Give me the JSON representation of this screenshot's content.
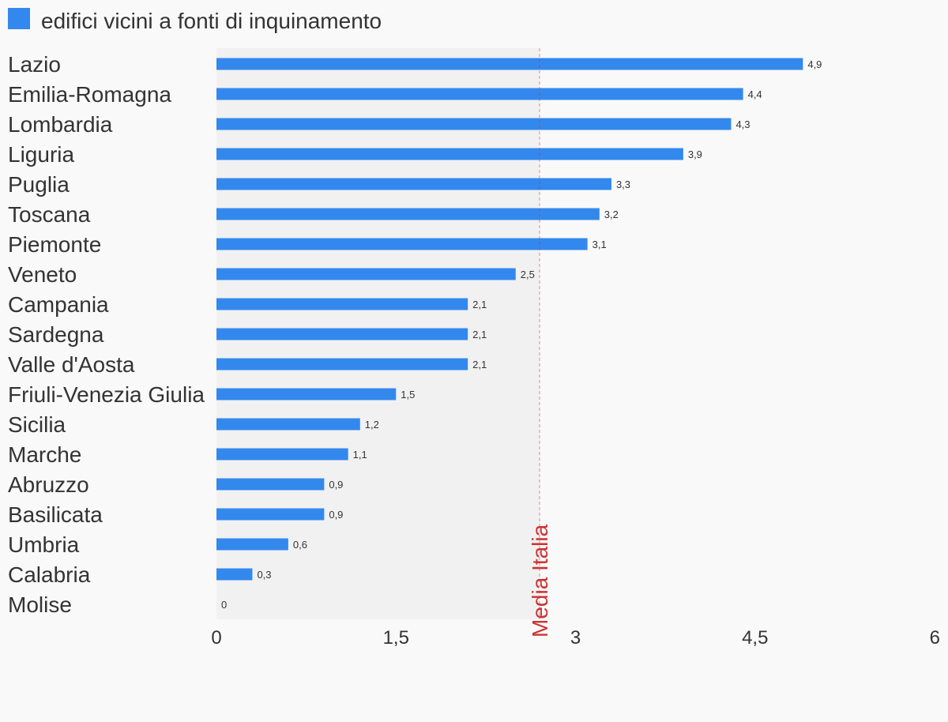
{
  "chart_data": {
    "type": "bar",
    "orientation": "horizontal",
    "series": [
      {
        "name": "edifici vicini a fonti di inquinamento",
        "color": "#3388ee"
      }
    ],
    "categories": [
      "Lazio",
      "Emilia-Romagna",
      "Lombardia",
      "Liguria",
      "Puglia",
      "Toscana",
      "Piemonte",
      "Veneto",
      "Campania",
      "Sardegna",
      "Valle d'Aosta",
      "Friuli-Venezia Giulia",
      "Sicilia",
      "Marche",
      "Abruzzo",
      "Basilicata",
      "Umbria",
      "Calabria",
      "Molise"
    ],
    "values": [
      4.9,
      4.4,
      4.3,
      3.9,
      3.3,
      3.2,
      3.1,
      2.5,
      2.1,
      2.1,
      2.1,
      1.5,
      1.2,
      1.1,
      0.9,
      0.9,
      0.6,
      0.3,
      0
    ],
    "value_labels": [
      "4,9",
      "4,4",
      "4,3",
      "3,9",
      "3,3",
      "3,2",
      "3,1",
      "2,5",
      "2,1",
      "2,1",
      "2,1",
      "1,5",
      "1,2",
      "1,1",
      "0,9",
      "0,9",
      "0,6",
      "0,3",
      "0"
    ],
    "xlim": [
      0,
      6
    ],
    "x_ticks": [
      0,
      1.5,
      3,
      4.5,
      6
    ],
    "x_tick_labels": [
      "0",
      "1,5",
      "3",
      "4,5",
      "6"
    ],
    "reference_line": {
      "label": "Media Italia",
      "value": 2.7,
      "color": "#cc3333"
    },
    "legend_position": "top-left",
    "grid": false
  }
}
